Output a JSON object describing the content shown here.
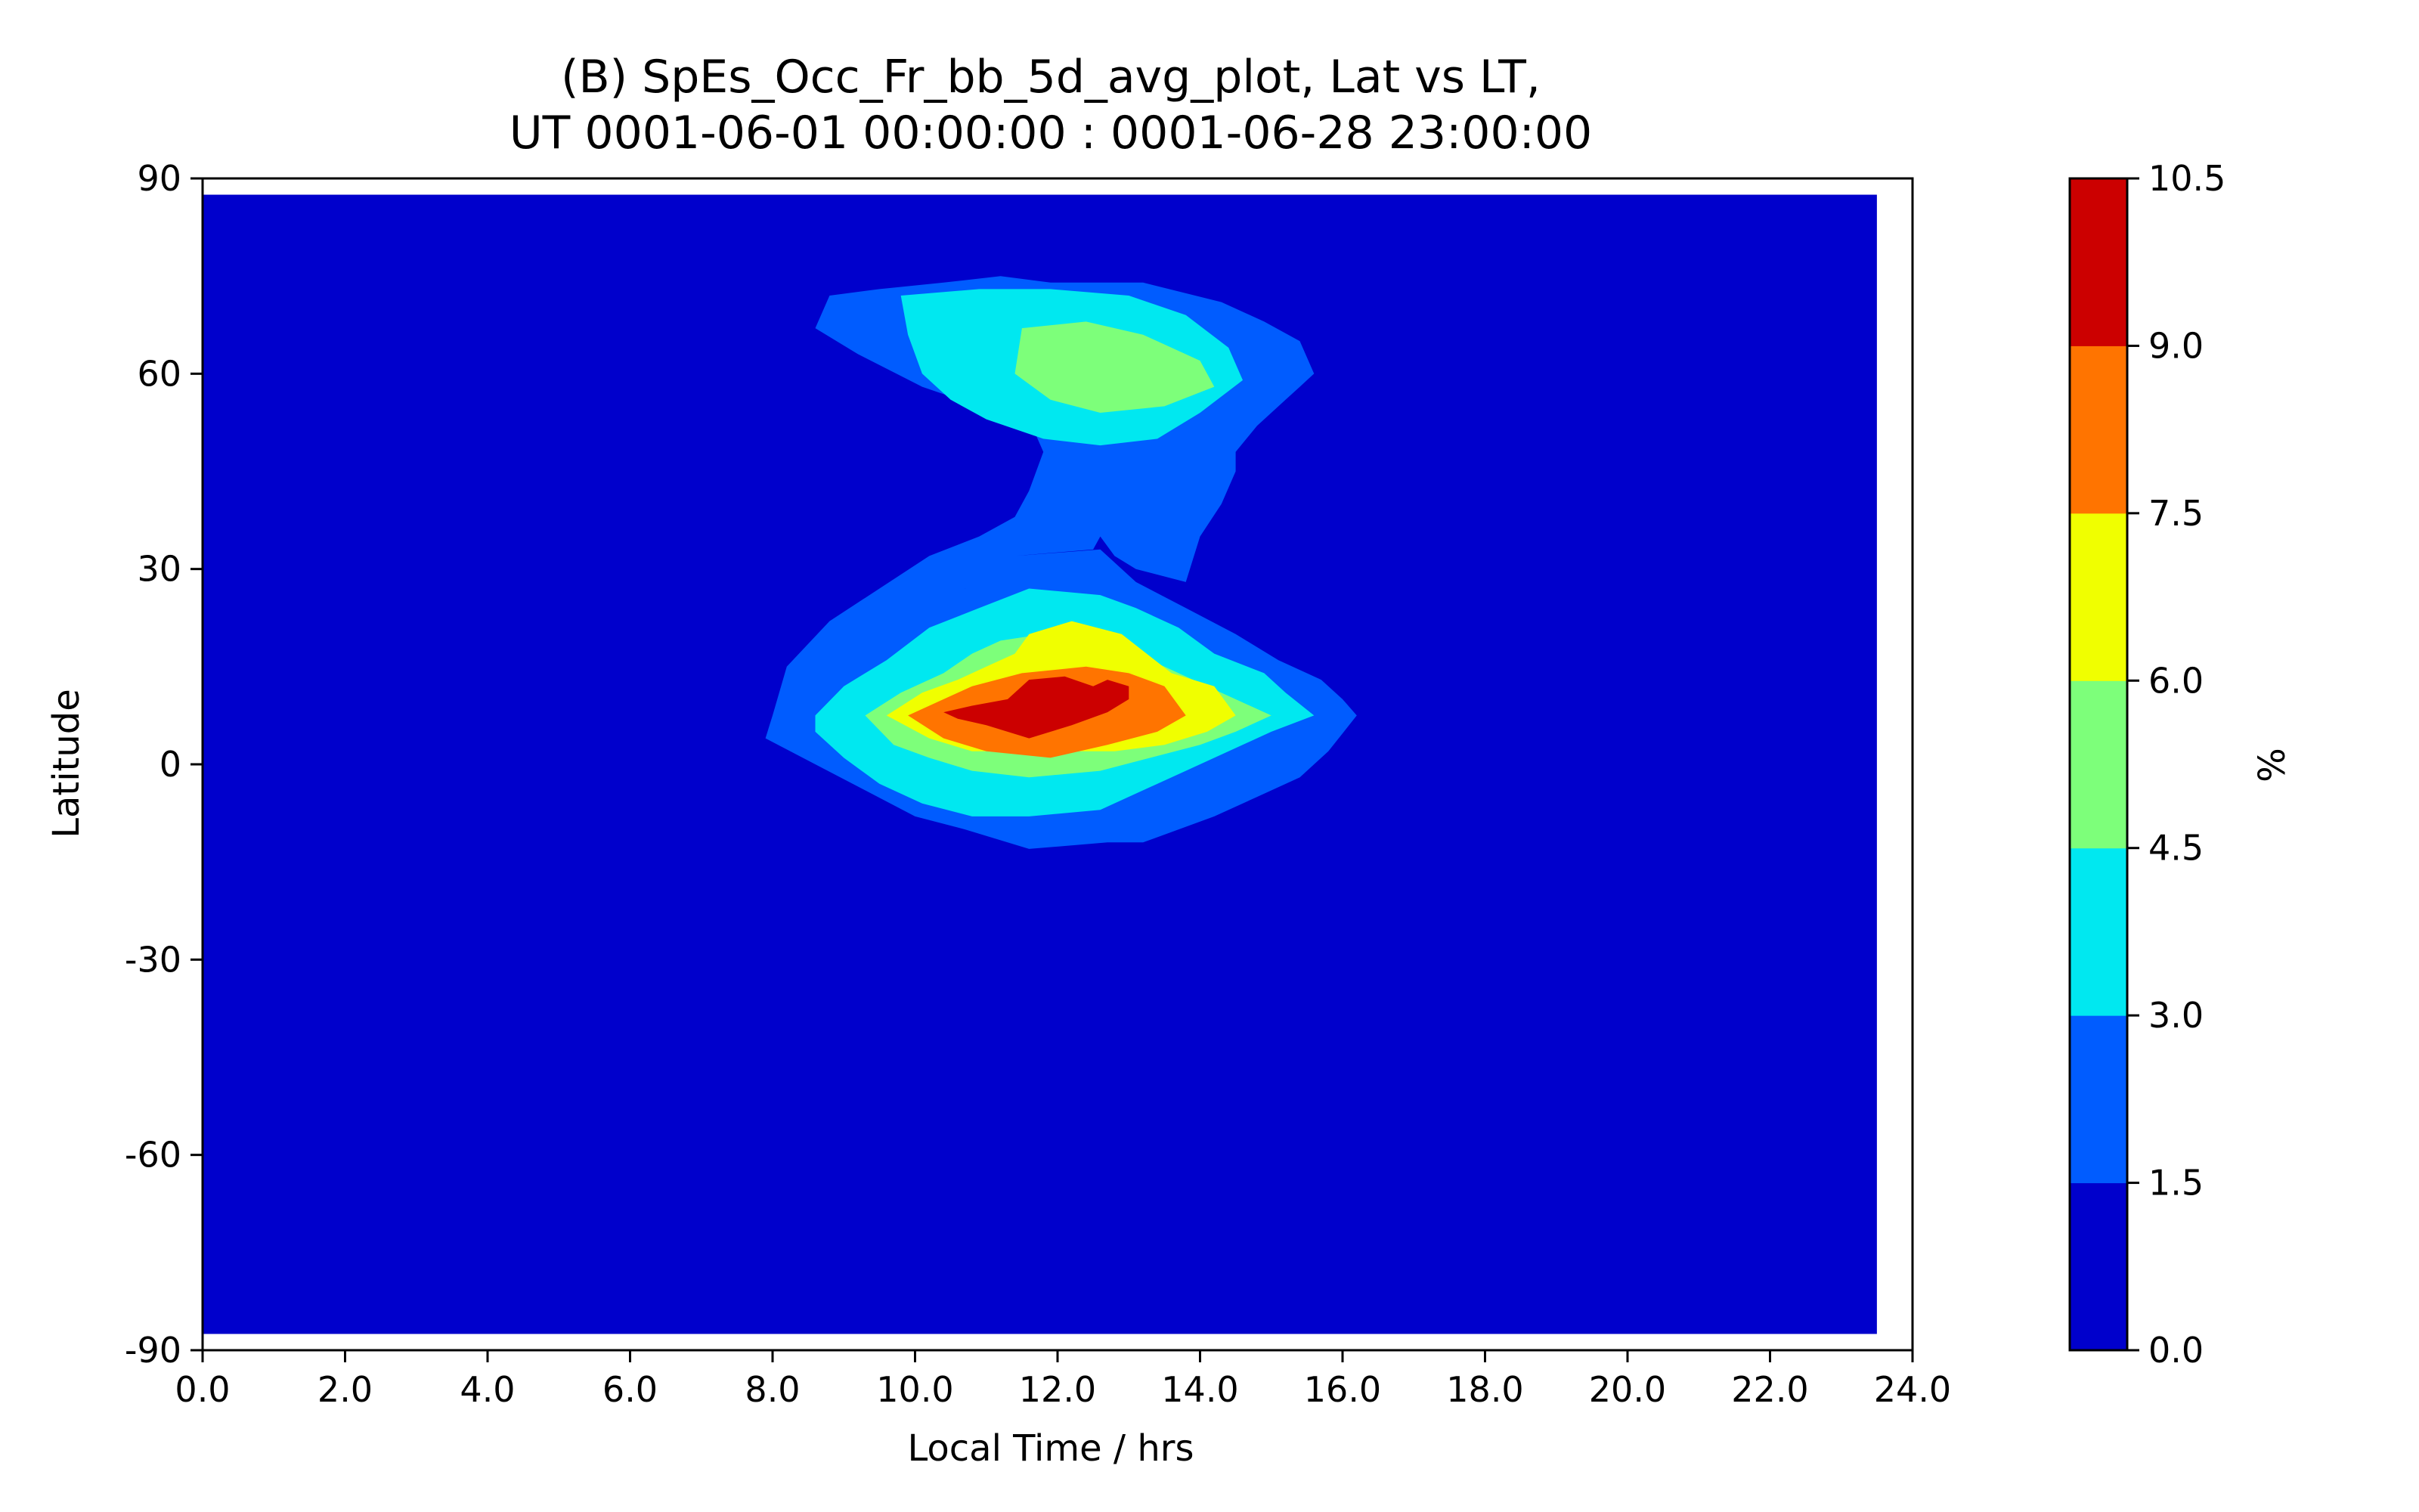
{
  "chart_data": {
    "type": "contour",
    "title": "(B) SpEs_Occ_Fr_bb_5d_avg_plot, Lat vs LT,",
    "subtitle": "UT 0001-06-01 00:00:00 : 0001-06-28 23:00:00",
    "xlabel": "Local Time / hrs",
    "ylabel": "Latitude",
    "xlim": [
      0,
      24
    ],
    "ylim": [
      -90,
      90
    ],
    "x_ticks": [
      "0.0",
      "2.0",
      "4.0",
      "6.0",
      "8.0",
      "10.0",
      "12.0",
      "14.0",
      "16.0",
      "18.0",
      "20.0",
      "22.0",
      "24.0"
    ],
    "y_ticks": [
      "90",
      "60",
      "30",
      "0",
      "-30",
      "-60",
      "-90"
    ],
    "colorbar": {
      "label": "%",
      "ticks": [
        "10.5",
        "9.0",
        "7.5",
        "6.0",
        "4.5",
        "3.0",
        "1.5",
        "0.0"
      ],
      "levels": [
        0.0,
        1.5,
        3.0,
        4.5,
        6.0,
        7.5,
        9.0,
        10.5
      ],
      "colors": [
        "#0000cc",
        "#005cff",
        "#00e8f0",
        "#7dff7a",
        "#f0ff00",
        "#ff7400",
        "#cc0000"
      ]
    },
    "data_extent": {
      "x": [
        0.0,
        23.5
      ],
      "y": [
        -87.5,
        87.5
      ]
    },
    "contours": [
      {
        "level": 1.5,
        "color": "#005cff",
        "points": [
          [
            8.0,
            7.5
          ],
          [
            8.6,
            12
          ],
          [
            9.3,
            16
          ],
          [
            10.0,
            22
          ],
          [
            10.7,
            27
          ],
          [
            11.4,
            32
          ],
          [
            12.5,
            33
          ],
          [
            12.6,
            35
          ],
          [
            12.8,
            32
          ],
          [
            13.1,
            30
          ],
          [
            13.8,
            28
          ],
          [
            14.0,
            35
          ],
          [
            14.3,
            40
          ],
          [
            14.5,
            45
          ],
          [
            14.5,
            48
          ],
          [
            14.8,
            52
          ],
          [
            15.2,
            56
          ],
          [
            15.4,
            58
          ],
          [
            15.6,
            60
          ],
          [
            15.4,
            65
          ],
          [
            14.9,
            68
          ],
          [
            14.3,
            71
          ],
          [
            13.2,
            74
          ],
          [
            11.9,
            74
          ],
          [
            11.2,
            75
          ],
          [
            10.4,
            74
          ],
          [
            9.5,
            73
          ],
          [
            8.8,
            72
          ],
          [
            8.6,
            67
          ],
          [
            9.2,
            63
          ],
          [
            10.1,
            58
          ],
          [
            10.9,
            55
          ],
          [
            11.6,
            53
          ],
          [
            11.8,
            48
          ],
          [
            11.6,
            42
          ],
          [
            11.4,
            38
          ],
          [
            10.9,
            35
          ],
          [
            10.2,
            32
          ],
          [
            9.5,
            27
          ],
          [
            8.8,
            22
          ],
          [
            8.2,
            15
          ],
          [
            8.0,
            7.5
          ],
          [
            7.9,
            4
          ],
          [
            8.6,
            0
          ],
          [
            9.3,
            -4
          ],
          [
            10.0,
            -8
          ],
          [
            10.7,
            -10
          ],
          [
            11.6,
            -13
          ],
          [
            12.7,
            -12
          ],
          [
            13.2,
            -12
          ],
          [
            13.7,
            -10
          ],
          [
            14.2,
            -8
          ],
          [
            14.8,
            -5
          ],
          [
            15.4,
            -2
          ],
          [
            15.8,
            2
          ],
          [
            16.2,
            7.5
          ],
          [
            16.0,
            10
          ],
          [
            15.7,
            13
          ],
          [
            15.1,
            16
          ],
          [
            14.5,
            20
          ],
          [
            13.8,
            24
          ],
          [
            13.1,
            28
          ],
          [
            12.6,
            33
          ],
          [
            11.4,
            32
          ],
          [
            10.7,
            27
          ],
          [
            10.0,
            22
          ],
          [
            9.3,
            16
          ],
          [
            8.6,
            12
          ],
          [
            8.0,
            7.5
          ]
        ]
      },
      {
        "level": 3.0,
        "color": "#00e8f0",
        "points": [
          [
            8.6,
            7.5
          ],
          [
            9.0,
            12
          ],
          [
            9.6,
            16
          ],
          [
            10.2,
            21
          ],
          [
            10.9,
            24
          ],
          [
            11.6,
            27
          ],
          [
            12.6,
            26
          ],
          [
            13.1,
            24
          ],
          [
            13.7,
            21
          ],
          [
            14.2,
            17
          ],
          [
            14.9,
            14
          ],
          [
            15.2,
            11
          ],
          [
            15.6,
            7.5
          ],
          [
            15.0,
            5
          ],
          [
            14.4,
            2
          ],
          [
            13.8,
            -1
          ],
          [
            13.2,
            -4
          ],
          [
            12.6,
            -7
          ],
          [
            11.6,
            -8
          ],
          [
            10.8,
            -8
          ],
          [
            10.1,
            -6
          ],
          [
            9.5,
            -3
          ],
          [
            9.0,
            1
          ],
          [
            8.6,
            5
          ],
          [
            8.6,
            7.5
          ]
        ]
      },
      {
        "level": 3.0,
        "color": "#00e8f0",
        "points": [
          [
            9.8,
            72
          ],
          [
            10.9,
            73
          ],
          [
            11.9,
            73
          ],
          [
            13.0,
            72
          ],
          [
            13.8,
            69
          ],
          [
            14.4,
            64
          ],
          [
            14.6,
            59
          ],
          [
            14.0,
            54
          ],
          [
            13.4,
            50
          ],
          [
            12.6,
            49
          ],
          [
            11.8,
            50
          ],
          [
            11.0,
            53
          ],
          [
            10.5,
            56
          ],
          [
            10.1,
            60
          ],
          [
            9.9,
            66
          ],
          [
            9.8,
            72
          ]
        ]
      },
      {
        "level": 4.5,
        "color": "#7dff7a",
        "points": [
          [
            9.3,
            7.5
          ],
          [
            9.8,
            11
          ],
          [
            10.4,
            14
          ],
          [
            10.8,
            17
          ],
          [
            11.2,
            19
          ],
          [
            11.8,
            20
          ],
          [
            12.4,
            20
          ],
          [
            12.9,
            18
          ],
          [
            13.5,
            15
          ],
          [
            14.1,
            12
          ],
          [
            14.7,
            9
          ],
          [
            15.0,
            7.5
          ],
          [
            14.5,
            5
          ],
          [
            14.0,
            3
          ],
          [
            13.3,
            1
          ],
          [
            12.6,
            -1
          ],
          [
            11.6,
            -2
          ],
          [
            10.8,
            -1
          ],
          [
            10.2,
            1
          ],
          [
            9.7,
            3
          ],
          [
            9.3,
            7.5
          ]
        ]
      },
      {
        "level": 4.5,
        "color": "#7dff7a",
        "points": [
          [
            11.5,
            67
          ],
          [
            12.4,
            68
          ],
          [
            13.2,
            66
          ],
          [
            14.0,
            62
          ],
          [
            14.2,
            58
          ],
          [
            13.5,
            55
          ],
          [
            12.6,
            54
          ],
          [
            11.9,
            56
          ],
          [
            11.4,
            60
          ],
          [
            11.5,
            67
          ]
        ]
      },
      {
        "level": 6.0,
        "color": "#f0ff00",
        "points": [
          [
            9.6,
            7.5
          ],
          [
            10.1,
            11
          ],
          [
            10.6,
            13
          ],
          [
            11.0,
            15
          ],
          [
            11.4,
            17
          ],
          [
            11.6,
            20
          ],
          [
            12.2,
            22
          ],
          [
            12.9,
            20
          ],
          [
            13.6,
            14
          ],
          [
            14.2,
            12
          ],
          [
            14.5,
            7.5
          ],
          [
            14.1,
            5
          ],
          [
            13.5,
            3
          ],
          [
            12.8,
            2
          ],
          [
            11.6,
            2
          ],
          [
            10.8,
            2
          ],
          [
            10.2,
            4
          ],
          [
            9.6,
            7.5
          ]
        ]
      },
      {
        "level": 7.5,
        "color": "#ff7400",
        "points": [
          [
            9.9,
            7.5
          ],
          [
            10.4,
            10
          ],
          [
            10.8,
            12
          ],
          [
            11.5,
            14
          ],
          [
            12.4,
            15
          ],
          [
            13.0,
            14
          ],
          [
            13.5,
            12
          ],
          [
            13.8,
            7.5
          ],
          [
            13.4,
            5
          ],
          [
            12.7,
            3
          ],
          [
            11.9,
            1
          ],
          [
            11.0,
            2
          ],
          [
            10.4,
            4
          ],
          [
            9.9,
            7.5
          ]
        ]
      },
      {
        "level": 9.0,
        "color": "#cc0000",
        "points": [
          [
            10.4,
            8
          ],
          [
            10.8,
            9
          ],
          [
            11.3,
            10
          ],
          [
            11.6,
            13
          ],
          [
            12.1,
            13.5
          ],
          [
            12.5,
            12
          ],
          [
            12.7,
            13
          ],
          [
            13.0,
            12
          ],
          [
            13.0,
            10
          ],
          [
            12.7,
            8
          ],
          [
            12.2,
            6
          ],
          [
            11.6,
            4
          ],
          [
            11.0,
            6
          ],
          [
            10.6,
            7
          ],
          [
            10.4,
            8
          ]
        ]
      }
    ]
  }
}
